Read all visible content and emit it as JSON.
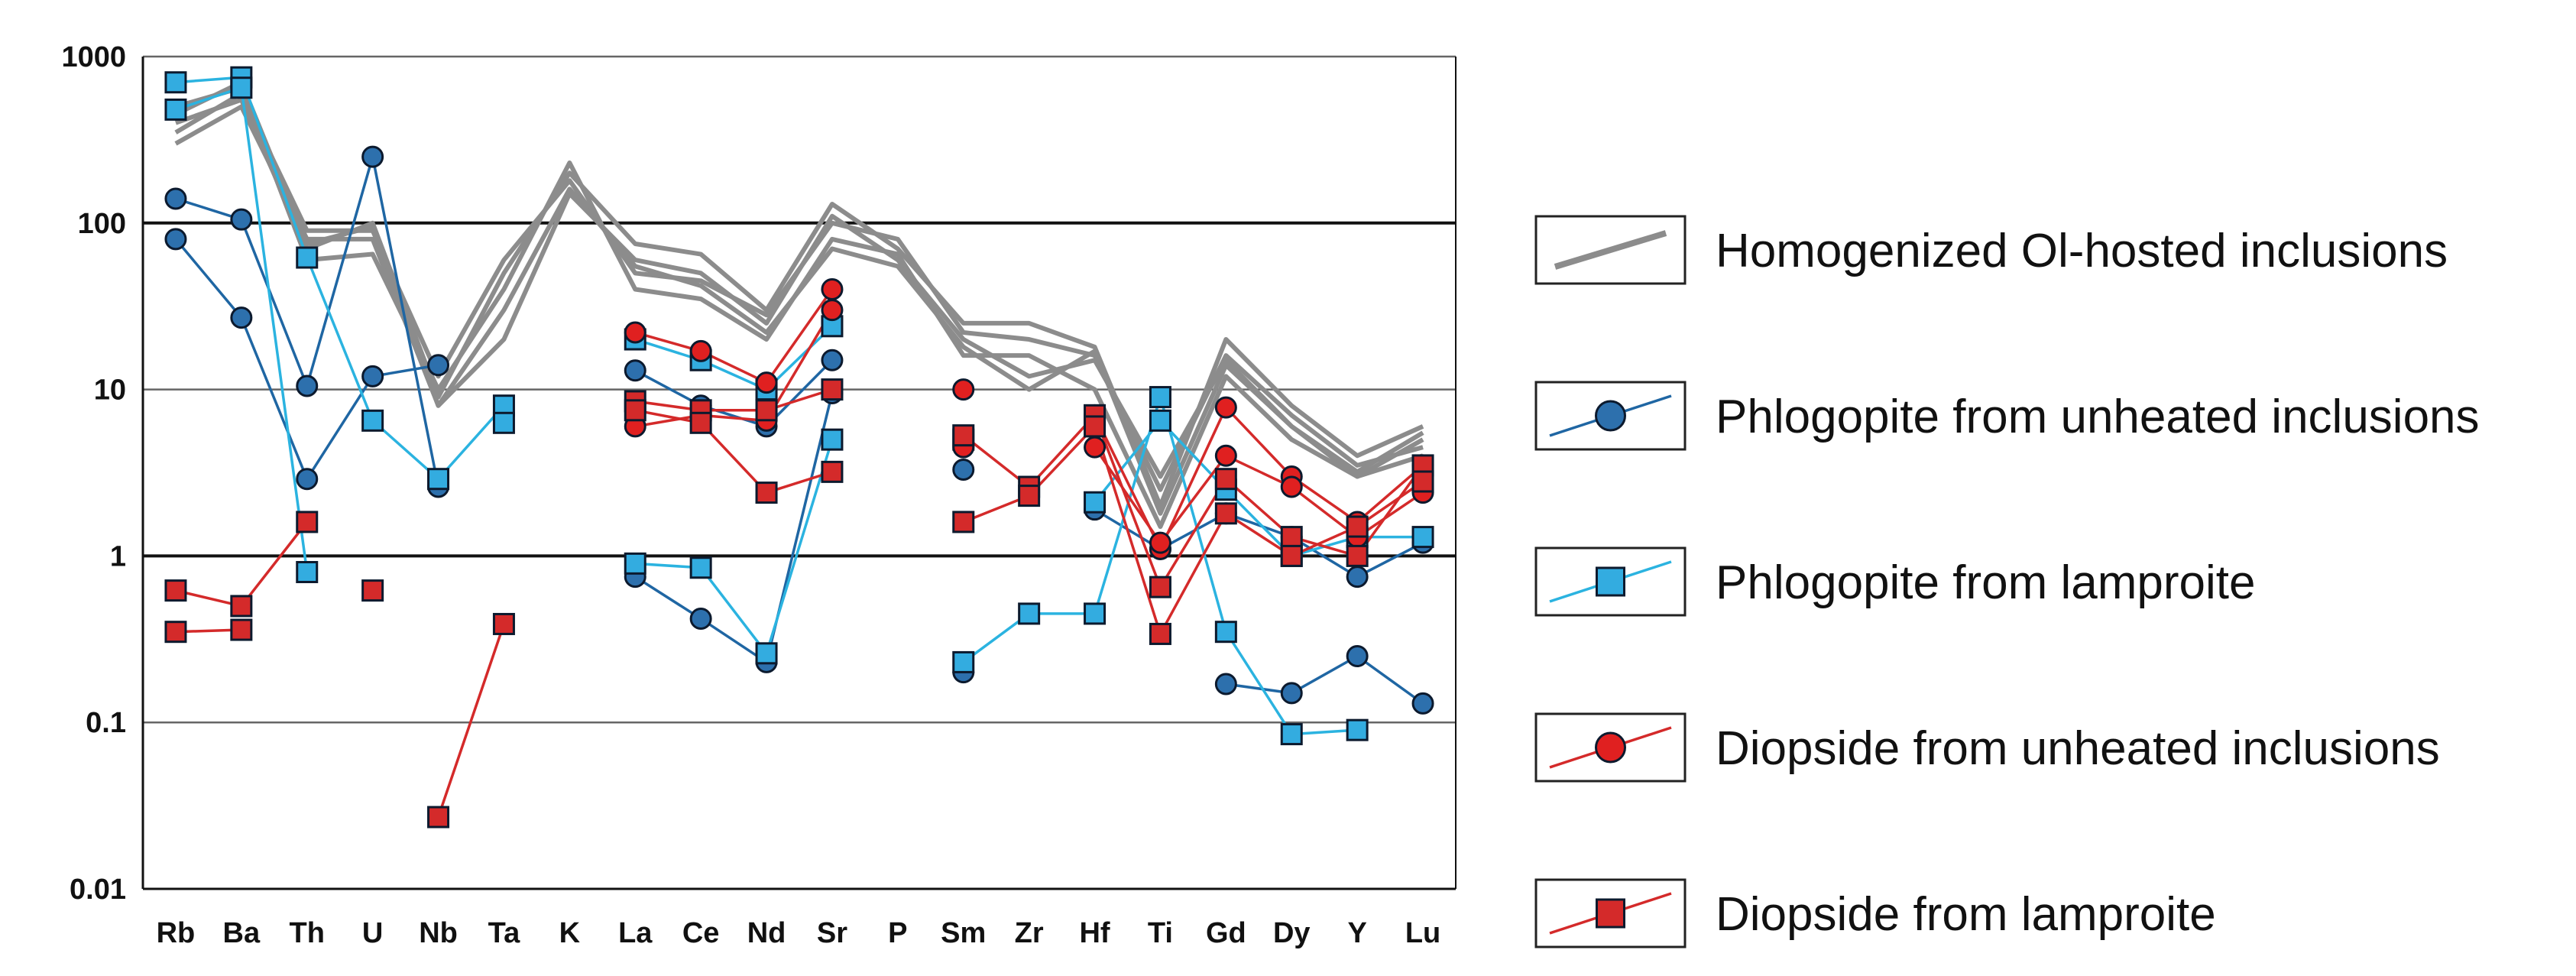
{
  "chart_data": {
    "type": "line",
    "title": "",
    "xlabel": "",
    "ylabel": "",
    "yscale": "log",
    "ylim": [
      0.01,
      1000
    ],
    "y_ticks": [
      {
        "value": 1000,
        "label": "1000"
      },
      {
        "value": 100,
        "label": "100"
      },
      {
        "value": 10,
        "label": "10"
      },
      {
        "value": 1,
        "label": "1"
      },
      {
        "value": 0.1,
        "label": "0.1"
      },
      {
        "value": 0.01,
        "label": "0.01"
      }
    ],
    "categories": [
      "Rb",
      "Ba",
      "Th",
      "U",
      "Nb",
      "Ta",
      "K",
      "La",
      "Ce",
      "Nd",
      "Sr",
      "P",
      "Sm",
      "Zr",
      "Hf",
      "Ti",
      "Gd",
      "Dy",
      "Y",
      "Lu"
    ],
    "legend_position": "right",
    "groups": [
      {
        "name": "Homogenized Ol-hosted inclusions",
        "color": "#8c8c8c",
        "marker": "none",
        "series": [
          [
            300,
            500,
            80,
            80,
            8,
            20,
            150,
            60,
            50,
            25,
            110,
            60,
            20,
            12,
            15,
            3,
            15,
            6,
            3,
            5
          ],
          [
            400,
            550,
            70,
            100,
            9,
            50,
            200,
            75,
            65,
            30,
            130,
            70,
            25,
            25,
            18,
            2,
            20,
            8,
            4,
            6
          ],
          [
            500,
            650,
            60,
            65,
            10,
            40,
            230,
            40,
            35,
            20,
            80,
            65,
            16,
            16,
            10,
            1.5,
            12,
            5,
            3,
            4
          ],
          [
            350,
            600,
            90,
            90,
            12,
            60,
            180,
            50,
            45,
            28,
            100,
            80,
            22,
            20,
            16,
            2.5,
            16,
            7,
            3.5,
            4.5
          ],
          [
            450,
            700,
            75,
            95,
            8,
            30,
            160,
            55,
            42,
            22,
            70,
            55,
            18,
            10,
            17,
            1.8,
            14,
            6,
            3.2,
            5.5
          ]
        ]
      },
      {
        "name": "Phlogopite from unheated inclusions",
        "color": "#1f66a3",
        "fill": "#2d70ad",
        "marker": "circle",
        "series": [
          [
            140,
            105,
            10.5,
            250,
            2.6,
            null,
            null,
            13,
            8,
            6,
            15,
            null,
            3.3,
            null,
            1.9,
            1.1,
            1.8,
            1.3,
            0.75,
            1.2
          ],
          [
            80,
            27,
            2.9,
            12,
            14,
            null,
            null,
            0.75,
            0.42,
            0.23,
            9.5,
            null,
            0.2,
            null,
            null,
            null,
            0.17,
            0.15,
            0.25,
            0.13
          ]
        ]
      },
      {
        "name": "Phlogopite from lamproite",
        "color": "#2bb3e0",
        "fill": "#33ace0",
        "marker": "square",
        "series": [
          [
            700,
            750,
            62,
            6.5,
            2.9,
            8,
            null,
            20,
            15,
            10,
            24,
            null,
            5,
            null,
            2.1,
            6.5,
            2.5,
            1,
            1.3,
            1.3
          ],
          [
            480,
            650,
            0.8,
            null,
            null,
            6.3,
            null,
            0.9,
            0.85,
            0.26,
            5,
            null,
            0.23,
            0.45,
            0.45,
            9,
            0.35,
            0.085,
            0.09,
            null
          ]
        ]
      },
      {
        "name": "Diopside from unheated inclusions",
        "color": "#d42a2a",
        "fill": "#e02020",
        "marker": "circle",
        "series": [
          [
            null,
            null,
            null,
            null,
            null,
            null,
            null,
            22,
            17,
            11,
            40,
            null,
            10,
            null,
            7,
            1.1,
            7.8,
            3,
            1.6,
            3.5
          ],
          [
            null,
            null,
            null,
            null,
            null,
            null,
            null,
            6,
            7,
            6.5,
            30,
            null,
            4.5,
            null,
            4.5,
            1.2,
            4,
            2.6,
            1.3,
            2.4
          ]
        ]
      },
      {
        "name": "Diopside from lamproite",
        "color": "#d42a2a",
        "fill": "#d42a2a",
        "marker": "square",
        "series": [
          [
            0.62,
            0.5,
            1.6,
            null,
            0.027,
            0.39,
            null,
            8.5,
            7.5,
            7.5,
            10,
            null,
            5.3,
            2.6,
            7,
            0.65,
            2.9,
            1.3,
            1.0,
            3.5
          ],
          [
            0.35,
            0.36,
            null,
            0.62,
            null,
            null,
            null,
            7.5,
            6.3,
            2.4,
            3.2,
            null,
            1.6,
            2.3,
            6,
            0.34,
            1.8,
            1.0,
            1.5,
            2.8
          ]
        ]
      }
    ]
  }
}
